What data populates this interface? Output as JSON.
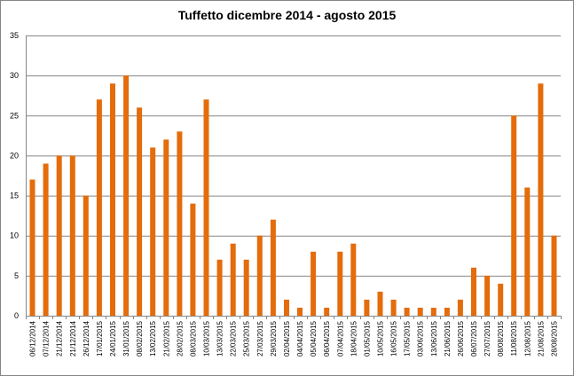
{
  "chart_data": {
    "type": "bar",
    "title": "Tuffetto dicembre 2014 - agosto 2015",
    "xlabel": "",
    "ylabel": "",
    "ylim": [
      0,
      35
    ],
    "yticks": [
      0,
      5,
      10,
      15,
      20,
      25,
      30,
      35
    ],
    "grid": true,
    "legend": "none",
    "bar_color": "#E46C0A",
    "categories": [
      "06/12/2014",
      "07/12/2014",
      "21/12/2014",
      "21/12/2014",
      "26/12/2014",
      "17/01/2015",
      "24/01/2015",
      "31/01/2015",
      "08/02/2015",
      "13/02/2015",
      "21/02/2015",
      "28/02/2015",
      "08/03/2015",
      "10/03/2015",
      "13/03/2015",
      "22/03/2015",
      "25/03/2015",
      "27/03/2015",
      "29/03/2015",
      "02/04/2015",
      "04/04/2015",
      "05/04/2015",
      "06/04/2015",
      "07/04/2015",
      "18/04/2015",
      "01/05/2015",
      "10/05/2015",
      "16/05/2015",
      "17/05/2015",
      "03/06/2015",
      "13/06/2015",
      "21/06/2015",
      "26/06/2015",
      "06/07/2015",
      "27/07/2015",
      "08/08/2015",
      "11/08/2015",
      "12/08/2015",
      "21/08/2015",
      "28/08/2015"
    ],
    "values": [
      17,
      19,
      20,
      20,
      15,
      27,
      29,
      30,
      26,
      21,
      22,
      23,
      14,
      27,
      7,
      9,
      7,
      10,
      12,
      2,
      1,
      8,
      1,
      8,
      9,
      2,
      3,
      2,
      1,
      1,
      1,
      1,
      2,
      6,
      5,
      4,
      25,
      16,
      29,
      10
    ]
  }
}
